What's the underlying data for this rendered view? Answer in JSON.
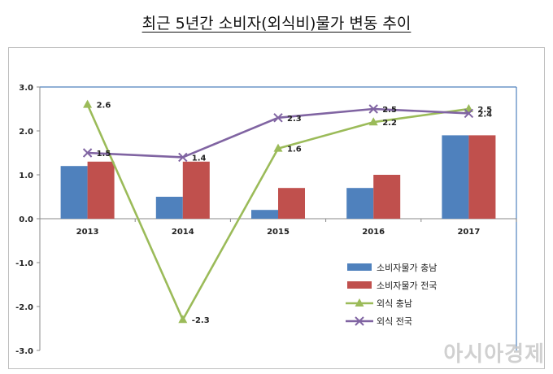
{
  "title": "최근 5년간 소비자(외식비)물가 변동 추이",
  "watermark": "아시아경제",
  "chart_data": {
    "type": "bar",
    "categories": [
      "2013",
      "2014",
      "2015",
      "2016",
      "2017"
    ],
    "ylim": [
      -3.0,
      3.0
    ],
    "yticks": [
      "3.0",
      "2.0",
      "1.0",
      "0.0",
      "-1.0",
      "-2.0",
      "-3.0"
    ],
    "bar_series": [
      {
        "name": "소비자물가 충남",
        "values": [
          1.2,
          0.5,
          0.2,
          0.7,
          1.9
        ],
        "color": "#4f81bd"
      },
      {
        "name": "소비자물가 전국",
        "values": [
          1.3,
          1.3,
          0.7,
          1.0,
          1.9
        ],
        "color": "#c0504d"
      }
    ],
    "line_series": [
      {
        "name": "외식 충남",
        "values": [
          2.6,
          -2.3,
          1.6,
          2.2,
          2.5
        ],
        "labels": [
          "2.6",
          "-2.3",
          "1.6",
          "2.2",
          "2.5"
        ],
        "color": "#9bbb59",
        "marker": "triangle"
      },
      {
        "name": "외식 전국",
        "values": [
          1.5,
          1.4,
          2.3,
          2.5,
          2.4
        ],
        "labels": [
          "1.5",
          "1.4",
          "2.3",
          "2.5",
          "2.4"
        ],
        "color": "#8064a2",
        "marker": "x"
      }
    ],
    "legend_position": "lower-right",
    "grid": false
  }
}
